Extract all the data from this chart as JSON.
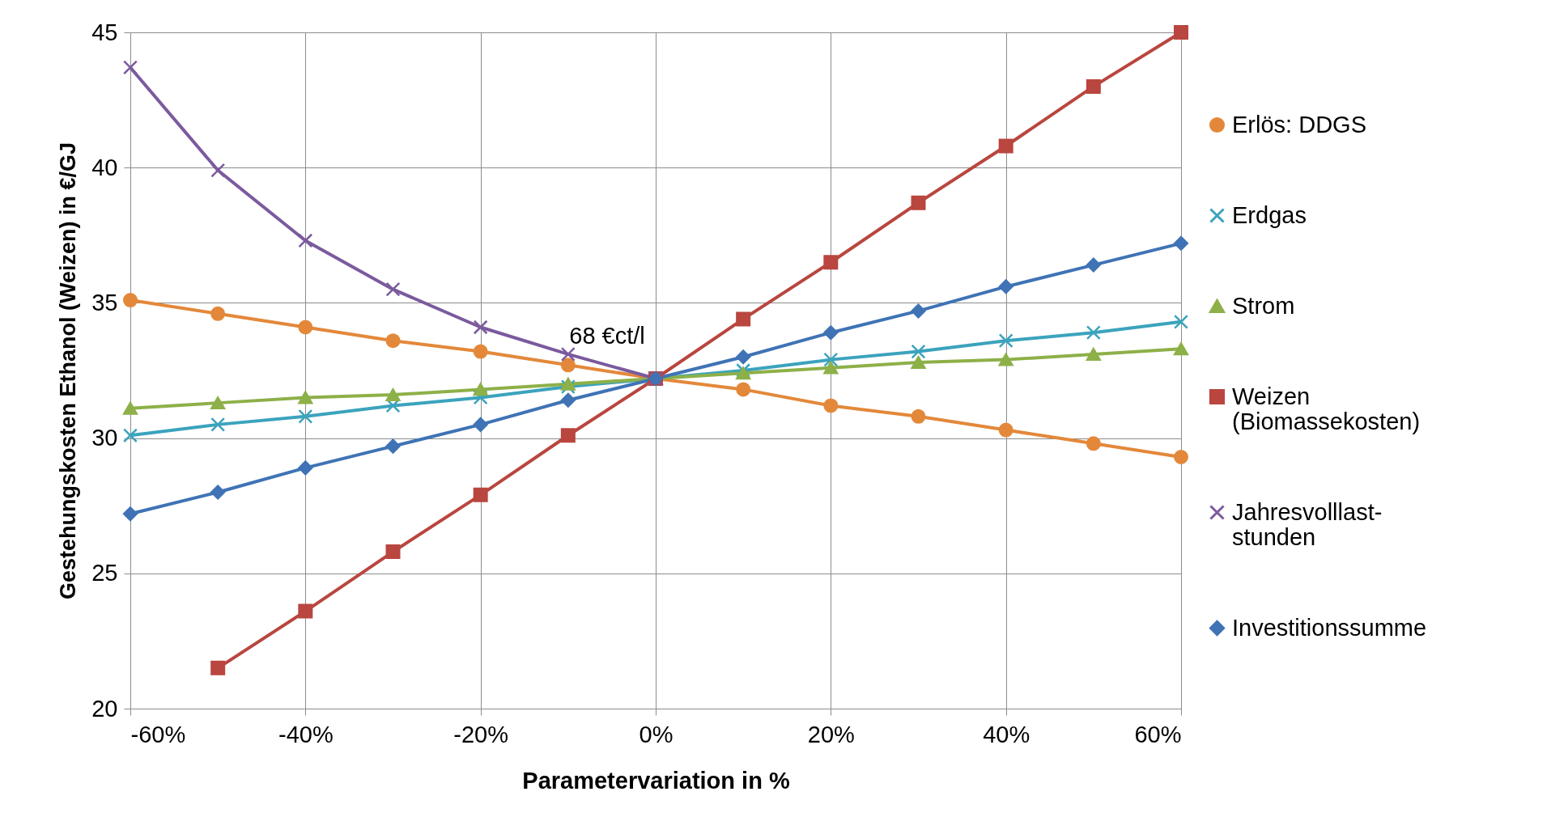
{
  "chart_data": {
    "type": "line",
    "xlabel": "Parametervariation in %",
    "ylabel": "Gestehungskosten Ethanol (Weizen) in €/GJ",
    "x": [
      -60,
      -50,
      -40,
      -30,
      -20,
      -10,
      0,
      10,
      20,
      30,
      40,
      50,
      60
    ],
    "xlim": [
      -60,
      60
    ],
    "xticks": [
      {
        "value": -60,
        "label": "-60%"
      },
      {
        "value": -40,
        "label": "-40%"
      },
      {
        "value": -20,
        "label": "-20%"
      },
      {
        "value": 0,
        "label": "0%"
      },
      {
        "value": 20,
        "label": "20%"
      },
      {
        "value": 40,
        "label": "40%"
      },
      {
        "value": 60,
        "label": "60%"
      }
    ],
    "ylim": [
      20,
      45
    ],
    "yticks": [
      20,
      25,
      30,
      35,
      40,
      45
    ],
    "grid": true,
    "legend": "right",
    "series": [
      {
        "name": "Erlös: DDGS",
        "color": "#e3883a",
        "marker": "circle",
        "values": [
          35.1,
          34.6,
          34.1,
          33.6,
          33.2,
          32.7,
          32.2,
          31.8,
          31.2,
          30.8,
          30.3,
          29.8,
          29.3
        ]
      },
      {
        "name": "Erdgas",
        "color": "#3ba3bd",
        "marker": "cross",
        "values": [
          30.1,
          30.5,
          30.8,
          31.2,
          31.5,
          31.9,
          32.2,
          32.5,
          32.9,
          33.2,
          33.6,
          33.9,
          34.3
        ]
      },
      {
        "name": "Strom",
        "color": "#8db048",
        "marker": "triangle",
        "values": [
          31.1,
          31.3,
          31.5,
          31.6,
          31.8,
          32.0,
          32.2,
          32.4,
          32.6,
          32.8,
          32.9,
          33.1,
          33.3
        ]
      },
      {
        "name": "Weizen\n(Biomassekosten)",
        "color": "#b9463f",
        "marker": "square",
        "values": [
          null,
          21.5,
          23.6,
          25.8,
          27.9,
          30.1,
          32.2,
          34.4,
          36.5,
          38.7,
          40.8,
          43.0,
          45.0
        ]
      },
      {
        "name": "Jahresvolllast-\nstunden",
        "color": "#7b5a9e",
        "marker": "cross",
        "values": [
          43.7,
          39.9,
          37.3,
          35.5,
          34.1,
          33.1,
          32.2,
          null,
          null,
          null,
          null,
          null,
          null
        ]
      },
      {
        "name": "Investitionssumme",
        "color": "#3f73b5",
        "marker": "diamond",
        "values": [
          27.2,
          28.0,
          28.9,
          29.7,
          30.5,
          31.4,
          32.2,
          33.0,
          33.9,
          34.7,
          35.6,
          36.4,
          37.2
        ]
      }
    ],
    "annotations": [
      {
        "text": "68 €ct/l",
        "x": 0,
        "y": 32.2
      }
    ]
  }
}
